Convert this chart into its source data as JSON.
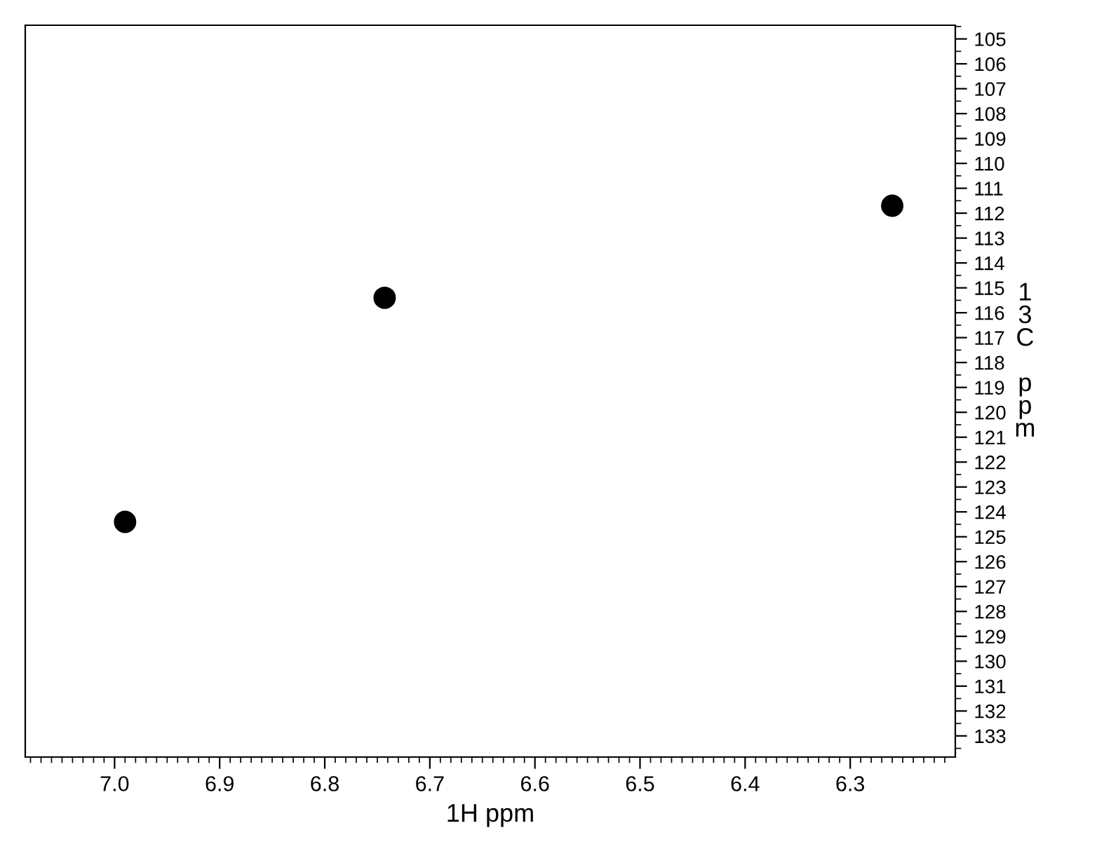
{
  "chart_data": {
    "type": "scatter",
    "xlabel": "1H ppm",
    "ylabel": "13C ppm",
    "x": [
      6.99,
      6.743,
      6.26
    ],
    "series": [
      {
        "color": "#000000",
        "values": [
          124.4,
          115.4,
          111.7
        ]
      }
    ],
    "marker": "circle",
    "grid": false,
    "legend": false,
    "xlim": [
      7.085,
      6.2
    ],
    "ylim": [
      133.85,
      104.45
    ],
    "xticks": [
      {
        "value": 7.0,
        "label": "7.0"
      },
      6.9,
      6.8,
      6.7,
      6.6,
      6.5,
      6.4,
      6.3
    ],
    "yticks": [
      105,
      106,
      107,
      108,
      109,
      110,
      111,
      112,
      113,
      114,
      115,
      116,
      117,
      118,
      119,
      120,
      121,
      122,
      123,
      124,
      125,
      126,
      127,
      128,
      129,
      130,
      131,
      132,
      133
    ]
  }
}
